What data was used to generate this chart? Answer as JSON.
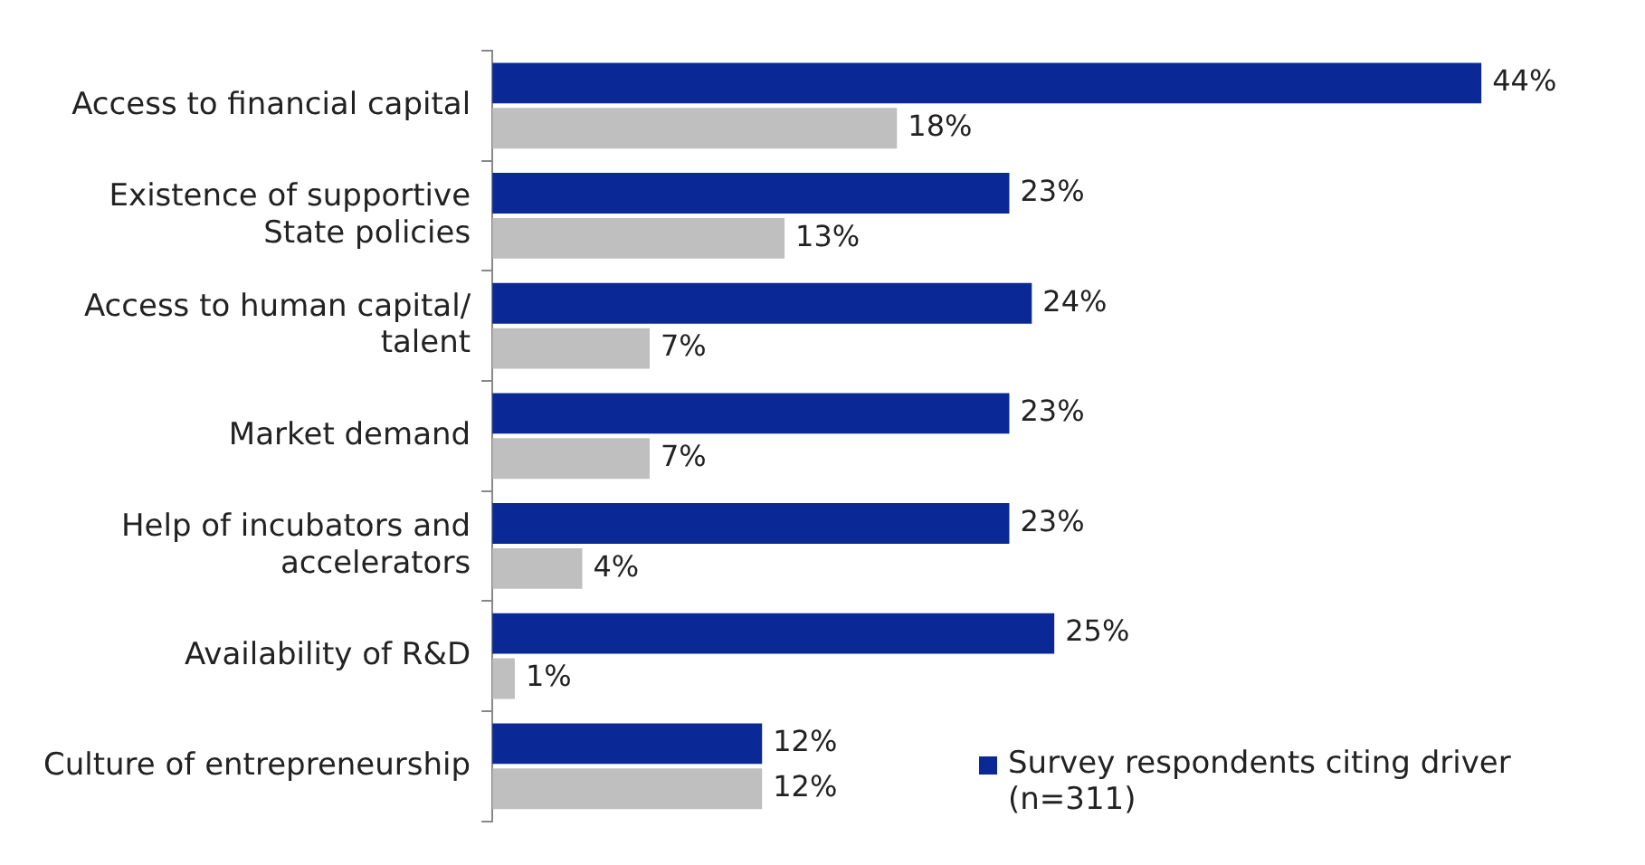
{
  "chart_data": {
    "type": "bar",
    "orientation": "horizontal",
    "categories": [
      "Access to financial capital",
      "Existence of supportive State policies",
      "Access to human capital/ talent",
      "Market demand",
      "Help of incubators and accelerators",
      "Availability of R&D",
      "Culture of entrepreneurship"
    ],
    "series": [
      {
        "name": "Survey respondents citing driver (n=311)",
        "color": "#0a2896",
        "values": [
          44,
          23,
          24,
          23,
          23,
          25,
          12
        ],
        "value_labels": [
          "44%",
          "23%",
          "24%",
          "23%",
          "23%",
          "25%",
          "12%"
        ]
      },
      {
        "color": "#bfbfbf",
        "values": [
          18,
          13,
          7,
          7,
          4,
          1,
          12
        ],
        "value_labels": [
          "18%",
          "13%",
          "7%",
          "7%",
          "4%",
          "1%",
          "12%"
        ]
      }
    ],
    "legend": "bottom right"
  }
}
